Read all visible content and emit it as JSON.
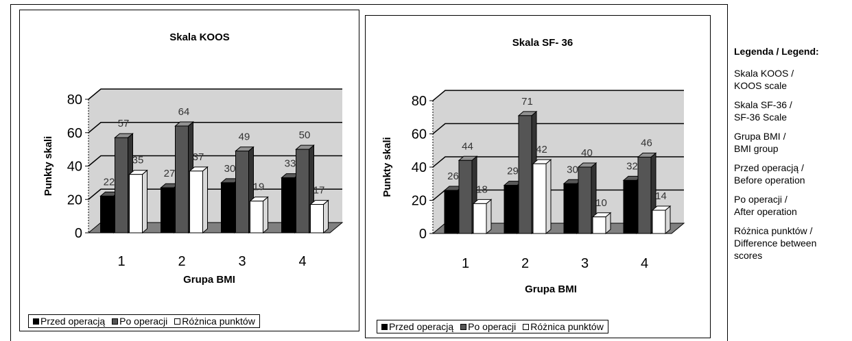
{
  "colors": {
    "before": "#000000",
    "after": "#555555",
    "difference": "#ffffff",
    "wall": "#d4d4d4",
    "floor": "#808080"
  },
  "legend_labels": [
    "Przed operacją",
    "Po operacji",
    "Różnica punktów"
  ],
  "chart_data": [
    {
      "type": "bar",
      "title": "Skala KOOS",
      "xlabel": "Grupa BMI",
      "ylabel": "Punkty skali",
      "ylim": [
        0,
        80
      ],
      "yticks": [
        "0",
        "20",
        "40",
        "60",
        "80"
      ],
      "categories": [
        "1",
        "2",
        "3",
        "4"
      ],
      "series": [
        {
          "name": "Przed operacją",
          "values": [
            22,
            27,
            30,
            33
          ]
        },
        {
          "name": "Po operacji",
          "values": [
            57,
            64,
            49,
            50
          ]
        },
        {
          "name": "Różnica punktów",
          "values": [
            35,
            37,
            19,
            17
          ]
        }
      ],
      "legend_position": "bottom",
      "grid": true
    },
    {
      "type": "bar",
      "title": "Skala SF- 36",
      "xlabel": "Grupa BMI",
      "ylabel": "Punkty skali",
      "ylim": [
        0,
        80
      ],
      "yticks": [
        "0",
        "20",
        "40",
        "60",
        "80"
      ],
      "categories": [
        "1",
        "2",
        "3",
        "4"
      ],
      "series": [
        {
          "name": "Przed operacją",
          "values": [
            26,
            29,
            30,
            32
          ]
        },
        {
          "name": "Po operacji",
          "values": [
            44,
            71,
            40,
            46
          ]
        },
        {
          "name": "Różnica punktów",
          "values": [
            18,
            42,
            10,
            14
          ]
        }
      ],
      "legend_position": "bottom",
      "grid": true
    }
  ],
  "side_legend": {
    "title": "Legenda / Legend:",
    "entries": [
      "Skala KOOS /\nKOOS scale",
      "Skala SF-36 /\nSF-36 Scale",
      "Grupa BMI /\nBMI group",
      "Przed operacją /\nBefore operation",
      "Po operacji /\nAfter operation",
      "Różnica punktów /\nDifference between\nscores"
    ]
  }
}
